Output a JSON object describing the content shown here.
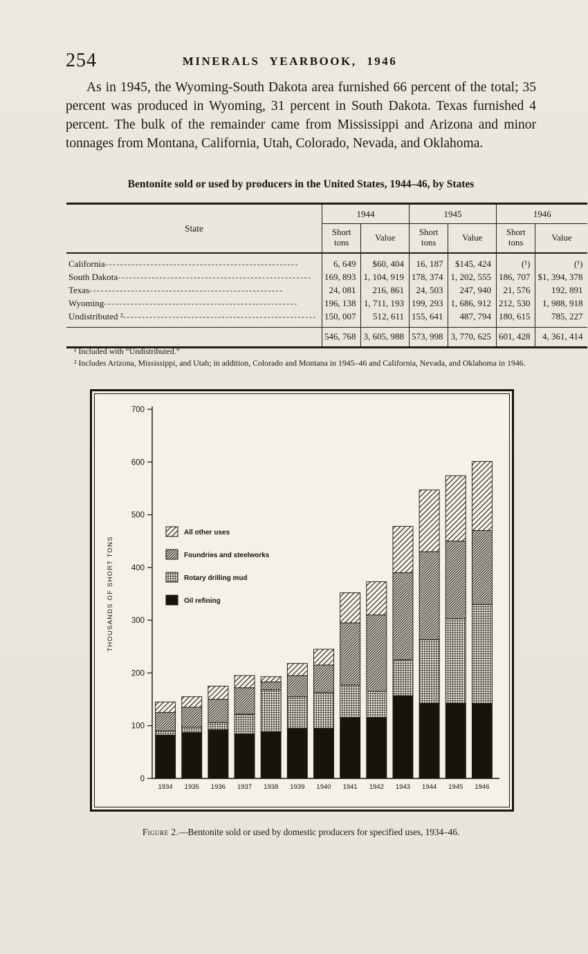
{
  "colors": {
    "paper": "#e9e6df",
    "figure_paper": "#f3f1ea",
    "ink": "#17130d"
  },
  "page": {
    "page_number": "254",
    "header_title": "MINERALS YEARBOOK, 1946",
    "paragraph": "As in 1945, the Wyoming-South Dakota area furnished 66 percent of the total; 35 percent was produced in Wyoming, 31 percent in South Dakota.  Texas furnished 4 percent.  The bulk of the remainder came from Mississippi and Arizona and minor tonnages from Montana, California, Utah, Colorado, Nevada, and Oklahoma."
  },
  "table": {
    "title": "Bentonite sold or used by producers in the United States, 1944–46, by States",
    "state_header": "State",
    "year_groups": [
      "1944",
      "1945",
      "1946"
    ],
    "sub_headers": [
      "Short tons",
      "Value"
    ],
    "rows": [
      {
        "state": "California",
        "values": [
          "6, 649",
          "$60, 404",
          "16, 187",
          "$145, 424",
          "(¹)",
          "(¹)"
        ]
      },
      {
        "state": "South Dakota",
        "values": [
          "169, 893",
          "1, 104, 919",
          "178, 374",
          "1, 202, 555",
          "186, 707",
          "$1, 394, 378"
        ]
      },
      {
        "state": "Texas",
        "values": [
          "24, 081",
          "216, 861",
          "24, 503",
          "247, 940",
          "21, 576",
          "192, 891"
        ]
      },
      {
        "state": "Wyoming",
        "values": [
          "196, 138",
          "1, 711, 193",
          "199, 293",
          "1, 686, 912",
          "212, 530",
          "1, 988, 918"
        ]
      },
      {
        "state": "Undistributed ²",
        "values": [
          "150, 007",
          "512, 611",
          "155, 641",
          "487, 794",
          "180, 615",
          "785, 227"
        ]
      }
    ],
    "total_values": [
      "546, 768",
      "3, 605, 988",
      "573, 998",
      "3, 770, 625",
      "601, 428",
      "4, 361, 414"
    ],
    "footnotes": [
      "¹ Included with “Undistributed.”",
      "² Includes Arizona, Mississippi, and Utah; in addition, Colorado and Montana in 1945–46 and California, Nevada, and Oklahoma in 1946."
    ]
  },
  "figure": {
    "caption_label": "Figure 2.",
    "caption_text": "—Bentonite sold or used by domestic producers for specified uses, 1934–46."
  },
  "chart_data": {
    "type": "bar",
    "stacked": true,
    "title": "",
    "ylabel": "THOUSANDS OF SHORT TONS",
    "xlabel": "",
    "ylim": [
      0,
      700
    ],
    "ytick_interval": 100,
    "grid": false,
    "legend_position": "upper-left-inside",
    "categories": [
      "1934",
      "1935",
      "1936",
      "1937",
      "1938",
      "1939",
      "1940",
      "1941",
      "1942",
      "1943",
      "1944",
      "1945",
      "1946"
    ],
    "series": [
      {
        "name": "Oil refining",
        "pattern": "solid",
        "values": [
          82,
          87,
          92,
          84,
          88,
          95,
          95,
          115,
          115,
          157,
          143,
          143,
          142
        ]
      },
      {
        "name": "Rotary drilling mud",
        "pattern": "grid",
        "values": [
          8,
          10,
          14,
          38,
          80,
          60,
          68,
          62,
          50,
          68,
          120,
          160,
          188
        ]
      },
      {
        "name": "Foundries and steelworks",
        "pattern": "diag-dense",
        "values": [
          35,
          38,
          44,
          50,
          15,
          40,
          52,
          118,
          145,
          165,
          167,
          147,
          140
        ]
      },
      {
        "name": "All other uses",
        "pattern": "diag-light",
        "values": [
          20,
          20,
          25,
          23,
          10,
          23,
          30,
          57,
          63,
          88,
          117,
          124,
          131
        ]
      }
    ],
    "totals": [
      145,
      155,
      175,
      195,
      193,
      218,
      245,
      352,
      373,
      478,
      547,
      574,
      601
    ],
    "legend": [
      "All other uses",
      "Foundries and steelworks",
      "Rotary drilling mud",
      "Oil refining"
    ]
  }
}
